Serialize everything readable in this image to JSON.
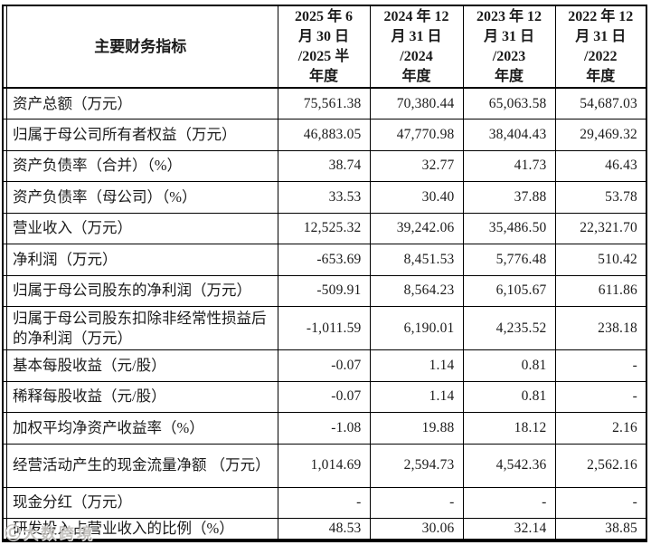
{
  "table": {
    "header": {
      "indicator_label": "主要财务指标",
      "periods": [
        "2025 年 6\n月 30 日\n/2025 半\n年度",
        "2024 年 12\n月 31 日\n/2024\n年度",
        "2023 年 12\n月 31 日\n/2023\n年度",
        "2022 年 12\n月 31 日\n/2022\n年度"
      ]
    },
    "rows": [
      {
        "label": "资产总额（万元）",
        "values": [
          "75,561.38",
          "70,380.44",
          "65,063.58",
          "54,687.03"
        ]
      },
      {
        "label": "归属于母公司所有者权益（万元）",
        "values": [
          "46,883.05",
          "47,770.98",
          "38,404.43",
          "29,469.32"
        ]
      },
      {
        "label": "资产负债率（合并）（%）",
        "values": [
          "38.74",
          "32.77",
          "41.73",
          "46.43"
        ]
      },
      {
        "label": "资产负债率（母公司）（%）",
        "values": [
          "33.53",
          "30.40",
          "37.88",
          "53.78"
        ]
      },
      {
        "label": "营业收入（万元）",
        "values": [
          "12,525.32",
          "39,242.06",
          "35,486.50",
          "22,321.70"
        ]
      },
      {
        "label": "净利润（万元）",
        "values": [
          "-653.69",
          "8,451.53",
          "5,776.48",
          "510.42"
        ]
      },
      {
        "label": "归属于母公司股东的净利润（万元）",
        "values": [
          "-509.91",
          "8,564.23",
          "6,105.67",
          "611.86"
        ]
      },
      {
        "label": "归属于母公司股东扣除非经常性损益后的净利润（万元）",
        "values": [
          "-1,011.59",
          "6,190.01",
          "4,235.52",
          "238.18"
        ]
      },
      {
        "label": "基本每股收益（元/股）",
        "values": [
          "-0.07",
          "1.14",
          "0.81",
          "-"
        ]
      },
      {
        "label": "稀释每股收益（元/股）",
        "values": [
          "-0.07",
          "1.14",
          "0.81",
          "-"
        ]
      },
      {
        "label": "加权平均净资产收益率（%）",
        "values": [
          "-1.08",
          "19.88",
          "18.12",
          "2.16"
        ]
      },
      {
        "label": "经营活动产生的现金流量净额 （万元）",
        "values": [
          "1,014.69",
          "2,594.73",
          "4,542.36",
          "2,562.16"
        ]
      },
      {
        "label": "现金分红（万元）",
        "values": [
          "-",
          "-",
          "-",
          "-"
        ]
      },
      {
        "label": "研发投入占营业收入的比例（%）",
        "values": [
          "48.53",
          "30.06",
          "32.14",
          "38.85"
        ]
      }
    ]
  },
  "watermark": {
    "icon": "Ⓒ",
    "text": "大数跨境"
  },
  "colors": {
    "background": "#ffffff",
    "border": "#000000",
    "text": "#1b1b1b",
    "watermark": "#9e9b96"
  }
}
